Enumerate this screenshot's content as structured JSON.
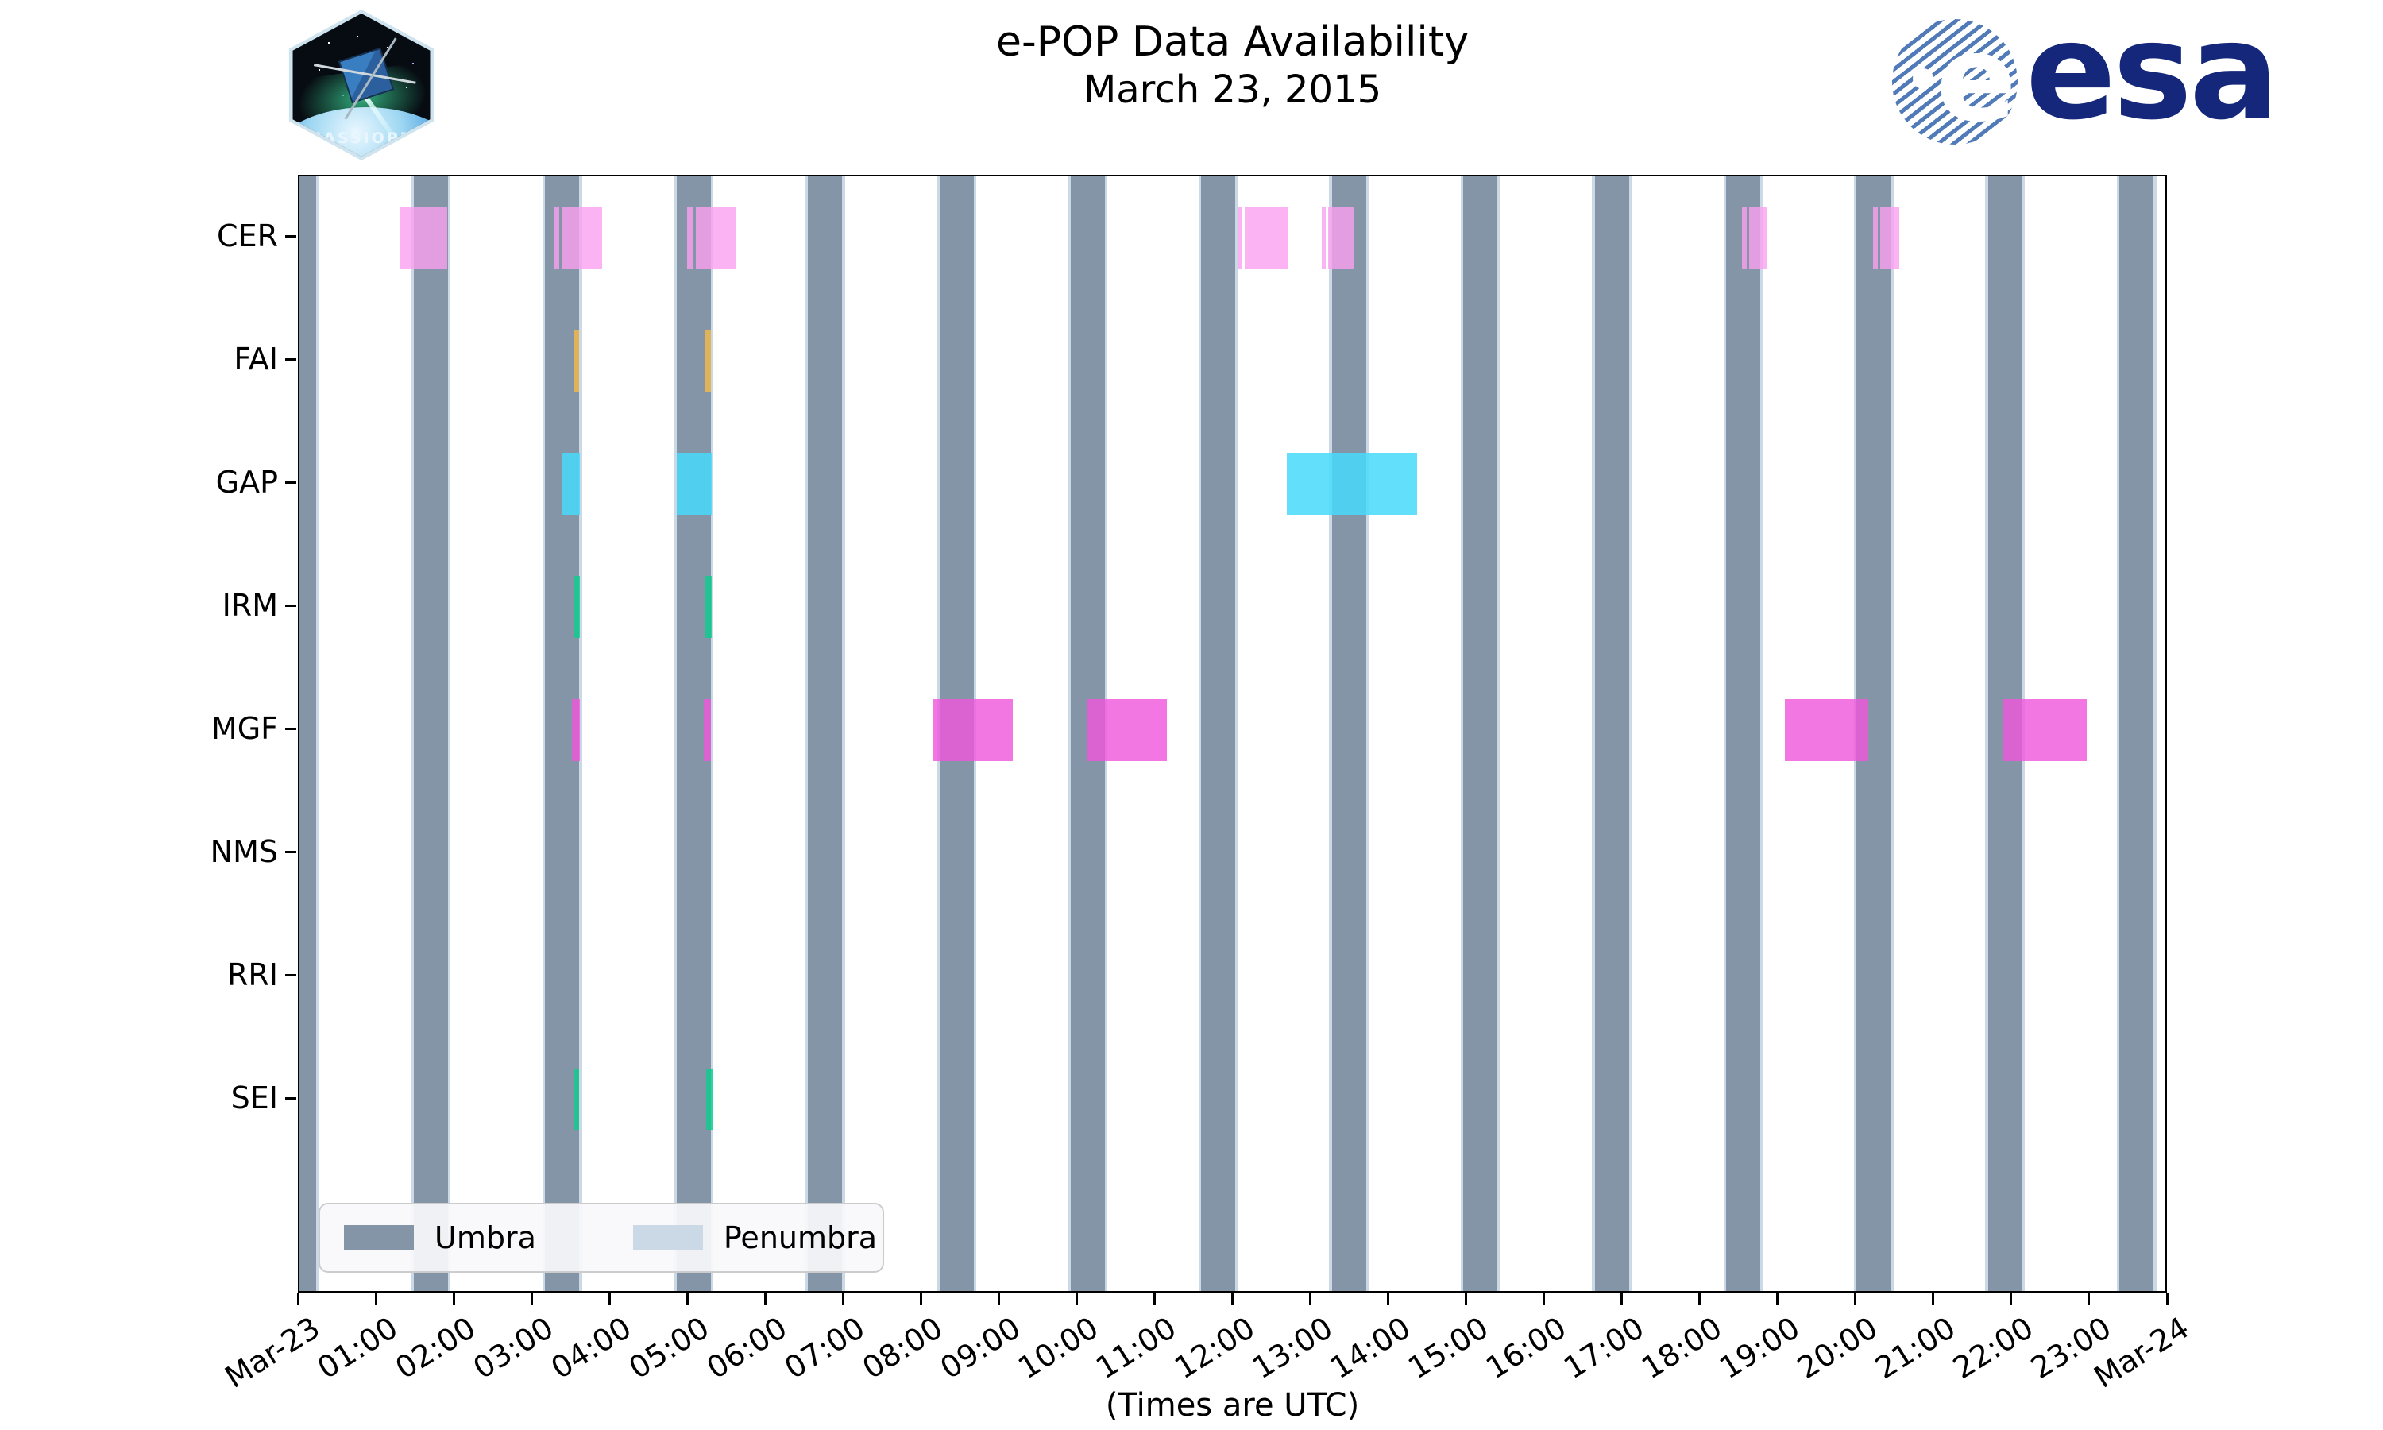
{
  "header": {
    "title_line1": "e-POP Data Availability",
    "title_line2": "March 23, 2015",
    "cassiope_patch_label": "CASSIOPE",
    "esa_wordmark": "esa",
    "esa_globe_letter": "e"
  },
  "legend": {
    "umbra_label": "Umbra",
    "penumbra_label": "Penumbra"
  },
  "axis": {
    "x_title": "(Times are UTC)"
  },
  "colors": {
    "umbra": "#8495A7",
    "penumbra": "#CBD9E7",
    "esa_navy": "#15277B",
    "cer": "rgba(250,160,240,0.8)",
    "fai": "rgba(247,186,71,0.8)",
    "gap": "rgba(71,218,250,0.85)",
    "irm": "rgba(12,205,143,0.8)",
    "mgf": "rgba(240,85,220,0.8)",
    "sei": "rgba(12,205,143,0.8)"
  },
  "chart_data": {
    "type": "bar",
    "subtype": "timeline-availability",
    "title": "e-POP Data Availability",
    "subtitle": "March 23, 2015",
    "xlabel": "(Times are UTC)",
    "x_axis_hours": [
      0,
      24
    ],
    "x_tick_labels": [
      "Mar-23",
      "01:00",
      "02:00",
      "03:00",
      "04:00",
      "05:00",
      "06:00",
      "07:00",
      "08:00",
      "09:00",
      "10:00",
      "11:00",
      "12:00",
      "13:00",
      "14:00",
      "15:00",
      "16:00",
      "17:00",
      "18:00",
      "19:00",
      "20:00",
      "21:00",
      "22:00",
      "23:00",
      "Mar-24"
    ],
    "y_categories": [
      "CER",
      "FAI",
      "GAP",
      "IRM",
      "MGF",
      "NMS",
      "RRI",
      "SEI"
    ],
    "grid": false,
    "legend_position": "lower-left",
    "umbra_intervals_hours": [
      [
        0.0,
        0.21
      ],
      [
        1.47,
        1.91
      ],
      [
        3.16,
        3.6
      ],
      [
        4.85,
        5.29
      ],
      [
        6.54,
        6.98
      ],
      [
        8.23,
        8.67
      ],
      [
        9.92,
        10.36
      ],
      [
        11.6,
        12.04
      ],
      [
        13.28,
        13.72
      ],
      [
        14.97,
        15.41
      ],
      [
        16.66,
        17.1
      ],
      [
        18.35,
        18.79
      ],
      [
        20.03,
        20.47
      ],
      [
        21.72,
        22.16
      ],
      [
        23.41,
        23.85
      ]
    ],
    "penumbra_edge_width_hours": 0.035,
    "series": [
      {
        "name": "CER",
        "color_key": "cer",
        "segments": [
          [
            1.3,
            1.9
          ],
          [
            3.27,
            3.34
          ],
          [
            3.38,
            3.89
          ],
          [
            4.99,
            5.06
          ],
          [
            5.1,
            5.61
          ],
          [
            12.07,
            12.12
          ],
          [
            12.16,
            12.72
          ],
          [
            13.15,
            13.2
          ],
          [
            13.23,
            13.56
          ],
          [
            18.55,
            18.62
          ],
          [
            18.65,
            18.88
          ],
          [
            20.24,
            20.3
          ],
          [
            20.33,
            20.58
          ]
        ]
      },
      {
        "name": "FAI",
        "color_key": "fai",
        "segments": [
          [
            3.52,
            3.6
          ],
          [
            5.21,
            5.29
          ]
        ]
      },
      {
        "name": "GAP",
        "color_key": "gap",
        "segments": [
          [
            3.37,
            3.61
          ],
          [
            4.85,
            5.3
          ],
          [
            12.7,
            14.38
          ]
        ]
      },
      {
        "name": "IRM",
        "color_key": "irm",
        "segments": [
          [
            3.52,
            3.61
          ],
          [
            5.22,
            5.3
          ]
        ]
      },
      {
        "name": "MGF",
        "color_key": "mgf",
        "segments": [
          [
            3.5,
            3.61
          ],
          [
            5.2,
            5.29
          ],
          [
            8.15,
            9.17
          ],
          [
            10.14,
            11.16
          ],
          [
            19.11,
            20.18
          ],
          [
            21.92,
            22.99
          ]
        ]
      },
      {
        "name": "NMS",
        "color_key": "mgf",
        "segments": []
      },
      {
        "name": "RRI",
        "color_key": "mgf",
        "segments": []
      },
      {
        "name": "SEI",
        "color_key": "sei",
        "segments": [
          [
            3.52,
            3.6
          ],
          [
            5.23,
            5.31
          ]
        ]
      }
    ]
  }
}
